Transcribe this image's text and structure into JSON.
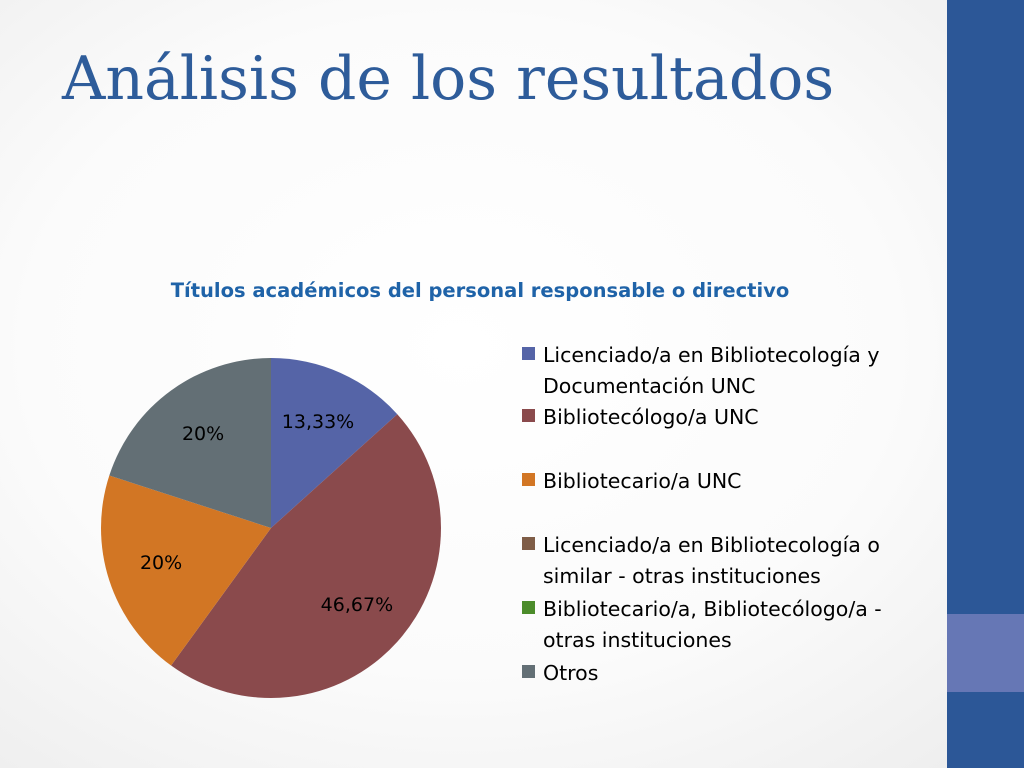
{
  "slide": {
    "title": "Análisis de los resultados"
  },
  "colors": {
    "title_text": "#2E5C9A",
    "chart_title_text": "#1F63A8",
    "side_band": "#2C5797",
    "side_band_accent": "#6677B5",
    "slice_label_text": "#000000"
  },
  "chart_data": {
    "type": "pie",
    "title": "Títulos académicos del personal responsable o directivo",
    "legend_position": "right",
    "series": [
      {
        "name": "Licenciado/a en Bibliotecología y Documentación UNC",
        "value": 13.33,
        "label": "13,33%",
        "color": "#5564A7"
      },
      {
        "name": "Bibliotecólogo/a UNC",
        "value": 46.67,
        "label": "46,67%",
        "color": "#8A4A4C"
      },
      {
        "name": "Bibliotecario/a UNC",
        "value": 20,
        "label": "20%",
        "color": "#D27624"
      },
      {
        "name": "Licenciado/a en Bibliotecología o similar - otras instituciones",
        "value": 0,
        "label": "",
        "color": "#7F5D47"
      },
      {
        "name": "Bibliotecario/a, Bibliotecólogo/a - otras instituciones",
        "value": 0,
        "label": "",
        "color": "#4C8C2B"
      },
      {
        "name": "Otros",
        "value": 20,
        "label": "20%",
        "color": "#636F75"
      }
    ]
  }
}
